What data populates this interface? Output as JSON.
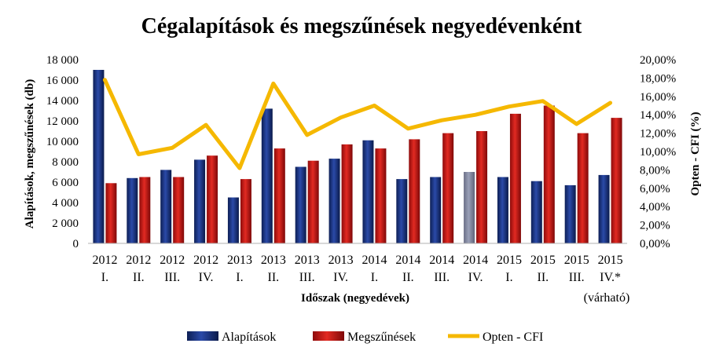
{
  "chart_data": {
    "type": "bar",
    "title": "Cégalapítások és megszűnések negyedévenként",
    "xlabel": "Időszak (negyedévek)",
    "ylabel": "Alapítások, megszűnések (db)",
    "y2label": "Opten - CFI (%)",
    "ylim": [
      0,
      18000
    ],
    "y2lim": [
      0,
      20
    ],
    "yticks": [
      "0",
      "2 000",
      "4 000",
      "6 000",
      "8 000",
      "10 000",
      "12 000",
      "14 000",
      "16 000",
      "18 000"
    ],
    "y2ticks": [
      "0,00%",
      "2,00%",
      "4,00%",
      "6,00%",
      "8,00%",
      "10,00%",
      "12,00%",
      "14,00%",
      "16,00%",
      "18,00%",
      "20,00%"
    ],
    "categories": [
      {
        "year": "2012",
        "q": "I."
      },
      {
        "year": "2012",
        "q": "II."
      },
      {
        "year": "2012",
        "q": "III."
      },
      {
        "year": "2012",
        "q": "IV."
      },
      {
        "year": "2013",
        "q": "I."
      },
      {
        "year": "2013",
        "q": "II."
      },
      {
        "year": "2013",
        "q": "III."
      },
      {
        "year": "2013",
        "q": "IV."
      },
      {
        "year": "2014",
        "q": "I."
      },
      {
        "year": "2014",
        "q": "II."
      },
      {
        "year": "2014",
        "q": "III."
      },
      {
        "year": "2014",
        "q": "IV."
      },
      {
        "year": "2015",
        "q": "I."
      },
      {
        "year": "2015",
        "q": "II."
      },
      {
        "year": "2015",
        "q": "III."
      },
      {
        "year": "2015",
        "q": "IV.*"
      }
    ],
    "note": "(várható)",
    "series": [
      {
        "name": "Alapítások",
        "type": "bar",
        "axis": "left",
        "color": "#1f3a8a",
        "values": [
          17000,
          6400,
          7200,
          8200,
          4500,
          13200,
          7500,
          8300,
          10100,
          6300,
          6500,
          7000,
          6500,
          6100,
          5700,
          6700
        ],
        "highlight_index": 11,
        "highlight_color": "#8b90a8"
      },
      {
        "name": "Megszűnések",
        "type": "bar",
        "axis": "left",
        "color": "#d01818",
        "values": [
          5900,
          6500,
          6500,
          8600,
          6300,
          9300,
          8100,
          9700,
          9300,
          10200,
          10800,
          11000,
          12700,
          13500,
          10800,
          12300
        ]
      },
      {
        "name": "Opten - CFI",
        "type": "line",
        "axis": "right",
        "color": "#f5b800",
        "values": [
          17.8,
          9.7,
          10.4,
          12.9,
          8.2,
          17.4,
          11.8,
          13.7,
          15.0,
          12.5,
          13.4,
          14.0,
          14.9,
          15.5,
          13.0,
          15.3
        ]
      }
    ],
    "legend": {
      "position": "bottom",
      "items": [
        {
          "label": "Alapítások",
          "color": "#1f3a8a",
          "kind": "bar"
        },
        {
          "label": "Megszűnések",
          "color": "#d01818",
          "kind": "bar"
        },
        {
          "label": "Opten - CFI",
          "color": "#f5b800",
          "kind": "line"
        }
      ]
    },
    "grid": false
  }
}
